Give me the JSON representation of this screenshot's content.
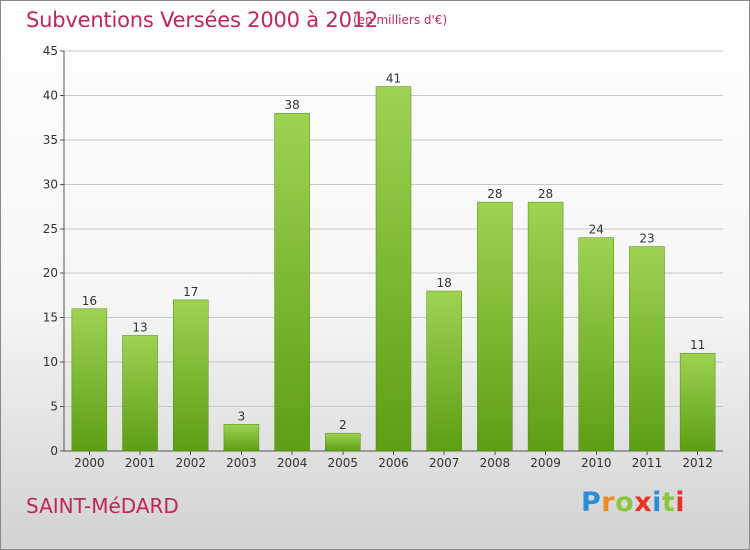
{
  "header": {
    "title": "Subventions Versées 2000 à 2012",
    "subtitle": "(en milliers d'€)"
  },
  "footer": {
    "city": "SAINT-MéDARD",
    "logo": {
      "letters": [
        "P",
        "r",
        "o",
        "x",
        "i",
        "t",
        "i"
      ],
      "colors": [
        "#2a8fd6",
        "#f18a1c",
        "#8cc63f",
        "#e8332a",
        "#2a8fd6",
        "#8cc63f",
        "#e8332a"
      ]
    }
  },
  "colors": {
    "title": "#c4245c",
    "bar_light": "#9ed352",
    "bar_dark": "#5d9e14",
    "gridline": "#c8c8c8"
  },
  "chart_data": {
    "type": "bar",
    "title": "Subventions Versées 2000 à 2012",
    "subtitle": "(en milliers d'€)",
    "categories": [
      "2000",
      "2001",
      "2002",
      "2003",
      "2004",
      "2005",
      "2006",
      "2007",
      "2008",
      "2009",
      "2010",
      "2011",
      "2012"
    ],
    "values": [
      16,
      13,
      17,
      3,
      38,
      2,
      41,
      18,
      28,
      28,
      24,
      23,
      11
    ],
    "ylim": [
      0,
      45
    ],
    "yticks": [
      0,
      5,
      10,
      15,
      20,
      25,
      30,
      35,
      40,
      45
    ],
    "grid": true,
    "legend": "none"
  }
}
